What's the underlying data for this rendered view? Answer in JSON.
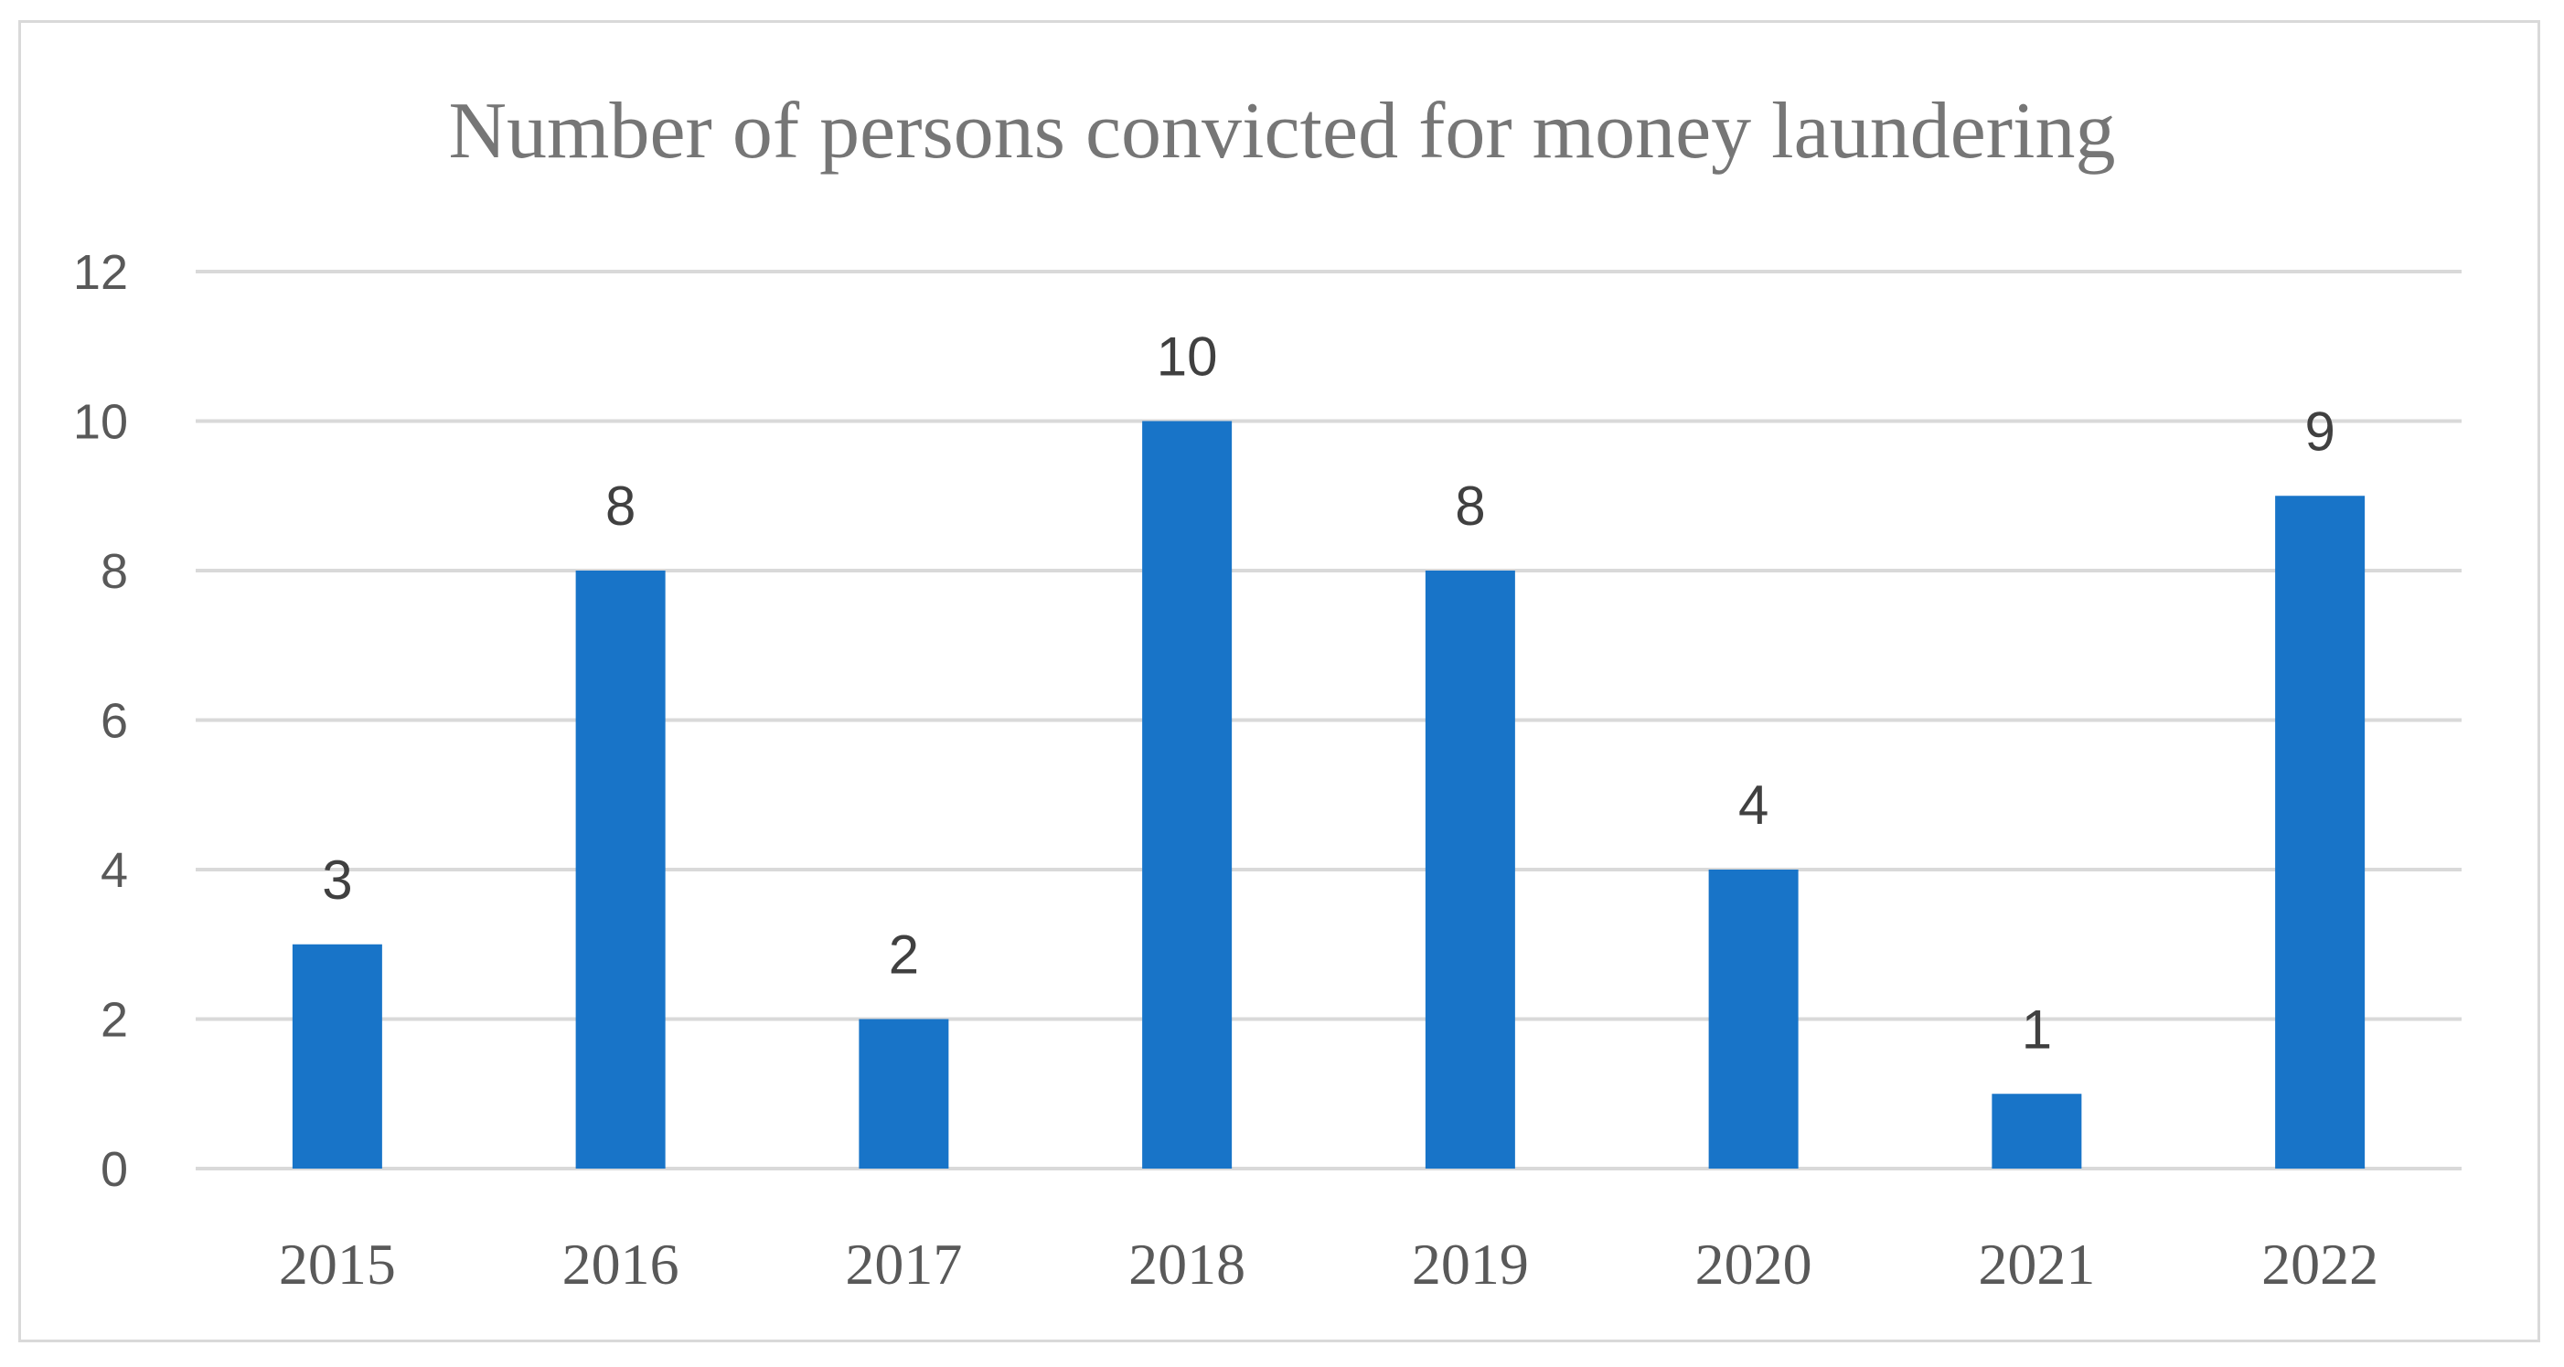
{
  "chart_data": {
    "type": "bar",
    "title": "Number of persons convicted for money laundering",
    "categories": [
      "2015",
      "2016",
      "2017",
      "2018",
      "2019",
      "2020",
      "2021",
      "2022"
    ],
    "values": [
      3,
      8,
      2,
      10,
      8,
      4,
      1,
      9
    ],
    "data_labels": [
      "3",
      "8",
      "2",
      "10",
      "8",
      "4",
      "1",
      "9"
    ],
    "y_ticks": [
      "0",
      "2",
      "4",
      "6",
      "8",
      "10",
      "12"
    ],
    "ylim": [
      0,
      12
    ],
    "xlabel": "",
    "ylabel": "",
    "grid": true,
    "legend": "none",
    "bar_color": "#1874c8",
    "grid_color": "#d9d9d9"
  }
}
